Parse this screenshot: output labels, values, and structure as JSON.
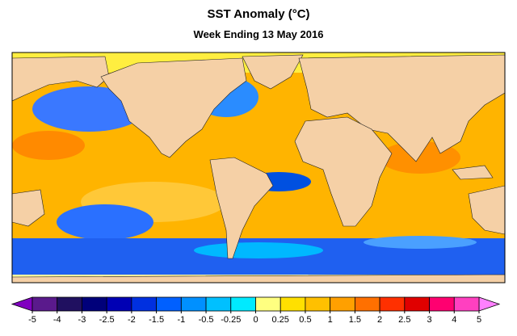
{
  "title": "SST Anomaly (°C)",
  "subtitle": "Week Ending 13 May 2016",
  "colorbar": {
    "ticks": [
      -5,
      -4,
      -3,
      -2.5,
      -2,
      -1.5,
      -1,
      -0.5,
      -0.25,
      0,
      0.25,
      0.5,
      1,
      1.5,
      2,
      2.5,
      3,
      4,
      5
    ],
    "colors": [
      "#5a1a8c",
      "#201060",
      "#00007a",
      "#0000b4",
      "#0030e0",
      "#0060ff",
      "#0090ff",
      "#00c0ff",
      "#00eaff",
      "#ffff80",
      "#ffe000",
      "#ffc000",
      "#ffa000",
      "#ff7000",
      "#ff3000",
      "#e00000",
      "#ff0070",
      "#ff40c0"
    ],
    "under_color": "#8000c0",
    "over_color": "#ff80ff"
  }
}
